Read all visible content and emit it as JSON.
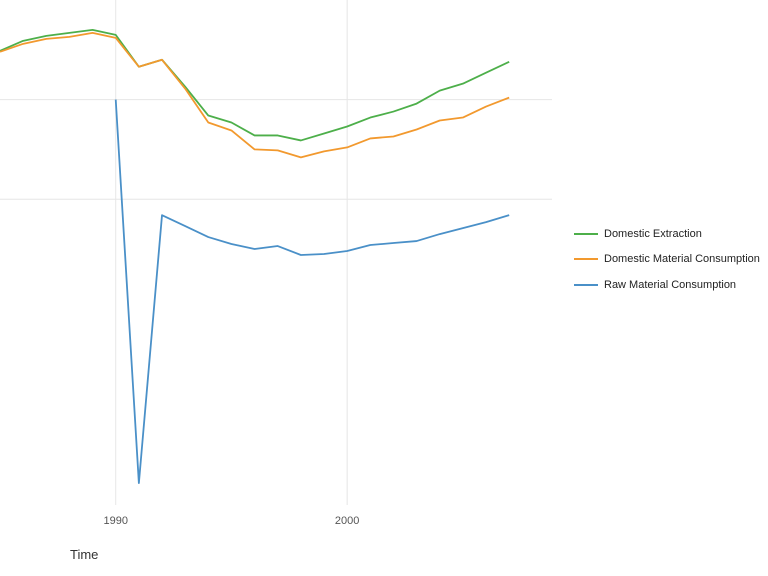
{
  "chart_data": {
    "type": "line",
    "title": "",
    "xlabel": "Time",
    "ylabel": "",
    "xlim": [
      1985,
      2008.85
    ],
    "ylim": [
      -2.07,
      3.0
    ],
    "x_ticks": [
      1990,
      2000
    ],
    "x_tick_labels": [
      "1990",
      "2000"
    ],
    "y_gridlines": [
      2.0,
      1.0
    ],
    "grid": true,
    "legend_position": "right",
    "x": [
      1985,
      1986,
      1987,
      1988,
      1989,
      1990,
      1991,
      1992,
      1993,
      1994,
      1995,
      1996,
      1997,
      1998,
      1999,
      2000,
      2001,
      2002,
      2003,
      2004,
      2005,
      2006,
      2007
    ],
    "series": [
      {
        "name": "Domestic Extraction",
        "color": "#4daf4a",
        "values": [
          2.49,
          2.59,
          2.64,
          2.67,
          2.7,
          2.65,
          2.33,
          2.4,
          2.13,
          1.84,
          1.77,
          1.64,
          1.64,
          1.59,
          1.66,
          1.73,
          1.82,
          1.88,
          1.96,
          2.09,
          2.16,
          2.27,
          2.38
        ]
      },
      {
        "name": "Domestic Material Consumption",
        "color": "#f2992e",
        "values": [
          2.48,
          2.56,
          2.61,
          2.63,
          2.67,
          2.62,
          2.33,
          2.4,
          2.11,
          1.77,
          1.69,
          1.5,
          1.49,
          1.42,
          1.48,
          1.52,
          1.61,
          1.63,
          1.7,
          1.79,
          1.82,
          1.93,
          2.02
        ]
      },
      {
        "name": "Raw Material Consumption",
        "color": "#4a90c8",
        "values": [
          null,
          null,
          null,
          null,
          null,
          2.0,
          -1.85,
          0.84,
          0.73,
          0.62,
          0.55,
          0.5,
          0.53,
          0.44,
          0.45,
          0.48,
          0.54,
          0.56,
          0.58,
          0.65,
          0.71,
          0.77,
          0.84
        ]
      }
    ]
  }
}
